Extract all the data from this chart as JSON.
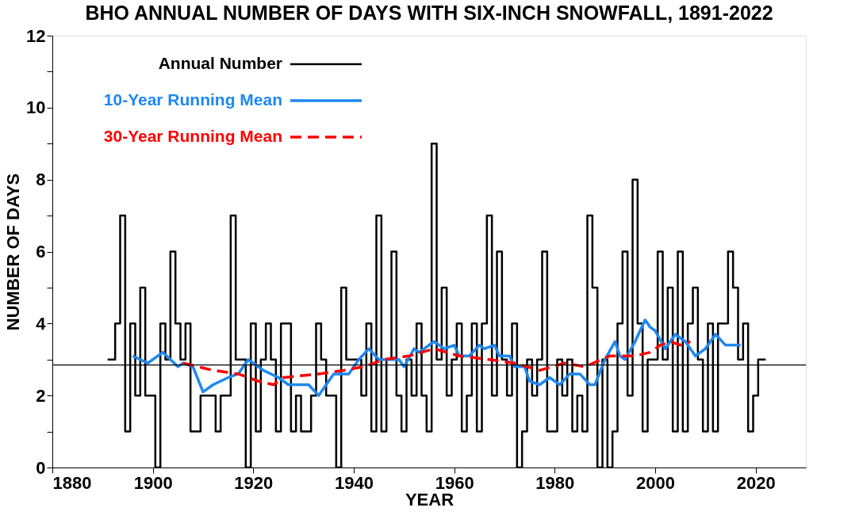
{
  "chart_data": {
    "type": "step",
    "title": "BHO ANNUAL NUMBER OF DAYS WITH SIX-INCH SNOWFALL, 1891-2022",
    "xlabel": "YEAR",
    "ylabel": "NUMBER OF DAYS",
    "xlim": [
      1880,
      2030
    ],
    "ylim": [
      0,
      12
    ],
    "xticks": [
      1880,
      1900,
      1920,
      1940,
      1960,
      1980,
      2000,
      2020
    ],
    "yticks": [
      0,
      {
        "value": 1,
        "label": null
      },
      2,
      {
        "value": 3,
        "label": null
      },
      4,
      {
        "value": 5,
        "label": null
      },
      6,
      {
        "value": 7,
        "label": null
      },
      8,
      {
        "value": 9,
        "label": null
      },
      10,
      {
        "value": 11,
        "label": null
      },
      12
    ],
    "grid": false,
    "legend": "top left",
    "ref_lines": [
      {
        "axis": "y",
        "value": 2.85,
        "color": "#000000"
      }
    ],
    "series": [
      {
        "name": "Annual Number",
        "color": "#000000",
        "line_style": "solid",
        "x": [
          1891,
          1892,
          1893,
          1894,
          1895,
          1896,
          1897,
          1898,
          1899,
          1900,
          1901,
          1902,
          1903,
          1904,
          1905,
          1906,
          1907,
          1908,
          1909,
          1910,
          1911,
          1912,
          1913,
          1914,
          1915,
          1916,
          1917,
          1918,
          1919,
          1920,
          1921,
          1922,
          1923,
          1924,
          1925,
          1926,
          1927,
          1928,
          1929,
          1930,
          1931,
          1932,
          1933,
          1934,
          1935,
          1936,
          1937,
          1938,
          1939,
          1940,
          1941,
          1942,
          1943,
          1944,
          1945,
          1946,
          1947,
          1948,
          1949,
          1950,
          1951,
          1952,
          1953,
          1954,
          1955,
          1956,
          1957,
          1958,
          1959,
          1960,
          1961,
          1962,
          1963,
          1964,
          1965,
          1966,
          1967,
          1968,
          1969,
          1970,
          1971,
          1972,
          1973,
          1974,
          1975,
          1976,
          1977,
          1978,
          1979,
          1980,
          1981,
          1982,
          1983,
          1984,
          1985,
          1986,
          1987,
          1988,
          1989,
          1990,
          1991,
          1992,
          1993,
          1994,
          1995,
          1996,
          1997,
          1998,
          1999,
          2000,
          2001,
          2002,
          2003,
          2004,
          2005,
          2006,
          2007,
          2008,
          2009,
          2010,
          2011,
          2012,
          2013,
          2014,
          2015,
          2016,
          2017,
          2018,
          2019,
          2020,
          2021,
          2022
        ],
        "values": [
          3,
          3,
          4,
          7,
          1,
          4,
          2,
          5,
          2,
          2,
          0,
          4,
          3,
          6,
          4,
          3,
          4,
          1,
          1,
          2,
          2,
          2,
          1,
          2,
          2,
          7,
          3,
          3,
          0,
          4,
          1,
          3,
          4,
          3,
          1,
          4,
          4,
          1,
          2,
          1,
          1,
          2,
          4,
          3,
          2,
          2,
          0,
          5,
          3,
          3,
          3,
          2,
          4,
          1,
          7,
          1,
          3,
          6,
          2,
          1,
          3,
          2,
          4,
          2,
          1,
          9,
          3,
          5,
          2,
          3,
          4,
          1,
          2,
          4,
          1,
          4,
          7,
          2,
          6,
          3,
          2,
          4,
          0,
          1,
          3,
          2,
          3,
          6,
          1,
          1,
          3,
          2,
          3,
          1,
          2,
          1,
          7,
          5,
          0,
          3,
          0,
          1,
          4,
          6,
          2,
          8,
          4,
          1,
          3,
          3,
          6,
          3,
          5,
          1,
          6,
          1,
          4,
          5,
          3,
          1,
          4,
          1,
          4,
          4,
          6,
          5,
          3,
          4,
          1,
          2,
          3,
          3
        ]
      },
      {
        "name": "10-Year Running Mean",
        "type": "line",
        "color": "#1e88f0",
        "line_style": "solid",
        "x": [
          1896,
          1899,
          1902,
          1905,
          1906,
          1908,
          1910,
          1912,
          1915,
          1917,
          1919,
          1920,
          1922,
          1925,
          1927,
          1928,
          1931,
          1933,
          1936,
          1939,
          1941,
          1943,
          1945,
          1949,
          1950,
          1952,
          1953,
          1956,
          1958,
          1960,
          1961,
          1962,
          1963,
          1965,
          1966,
          1968,
          1969,
          1971,
          1972,
          1974,
          1975,
          1977,
          1979,
          1981,
          1983,
          1984,
          1985,
          1987,
          1988,
          1990,
          1992,
          1993,
          1994,
          1996,
          1998,
          1999,
          2000,
          2002,
          2004,
          2006,
          2008,
          2010,
          2012,
          2014,
          2017
        ],
        "values": [
          3.1,
          2.9,
          3.2,
          2.8,
          2.9,
          2.8,
          2.1,
          2.3,
          2.5,
          2.6,
          3.0,
          2.9,
          2.7,
          2.5,
          2.3,
          2.3,
          2.3,
          2.0,
          2.6,
          2.6,
          3.0,
          3.3,
          3.0,
          3.0,
          2.8,
          3.3,
          3.2,
          3.5,
          3.3,
          3.4,
          3.1,
          3.1,
          3.1,
          3.4,
          3.3,
          3.4,
          3.1,
          3.1,
          2.8,
          2.8,
          2.4,
          2.3,
          2.5,
          2.3,
          2.6,
          2.6,
          2.6,
          2.3,
          2.3,
          3.0,
          3.5,
          3.1,
          3.0,
          3.5,
          4.1,
          3.9,
          3.8,
          3.3,
          3.7,
          3.5,
          3.1,
          3.3,
          3.7,
          3.4,
          3.4
        ]
      },
      {
        "name": "30-Year Running Mean",
        "type": "line",
        "color": "#ff0000",
        "line_style": "dashed",
        "x": [
          1906,
          1912,
          1917,
          1921,
          1924,
          1926,
          1933,
          1938,
          1942,
          1946,
          1951,
          1956,
          1961,
          1967,
          1972,
          1977,
          1982,
          1986,
          1991,
          1996,
          1999,
          2001,
          2003,
          2005,
          2007
        ],
        "values": [
          2.9,
          2.7,
          2.6,
          2.4,
          2.3,
          2.5,
          2.6,
          2.7,
          2.8,
          3.0,
          3.1,
          3.3,
          3.1,
          3.0,
          2.9,
          2.7,
          2.9,
          2.8,
          3.1,
          3.1,
          3.2,
          3.4,
          3.5,
          3.4,
          3.5
        ]
      }
    ]
  }
}
